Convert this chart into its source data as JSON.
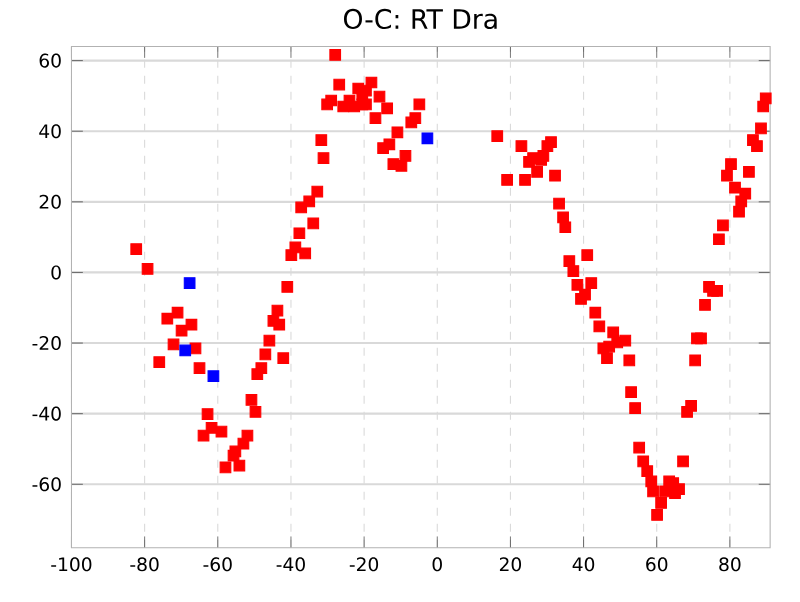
{
  "chart_data": {
    "type": "scatter",
    "title": "O-C: RT Dra",
    "xlim": [
      -100,
      91
    ],
    "ylim": [
      -78,
      64
    ],
    "xticks": [
      -100,
      -80,
      -60,
      -40,
      -20,
      0,
      20,
      40,
      60,
      80
    ],
    "yticks": [
      -60,
      -40,
      -20,
      0,
      20,
      40,
      60
    ],
    "grid": true,
    "marker": "square",
    "series": [
      {
        "color": "#ff0000",
        "x": [
          -82.3,
          -79.2,
          -41,
          -39.9,
          -38.8,
          -36.1,
          -37.7,
          -33.9,
          -37.2,
          -35,
          -32.8,
          -31.1,
          -31.7,
          -27.9,
          -26.8,
          -30.1,
          -29,
          -25.7,
          -24,
          -22.7,
          -21.6,
          -20.5,
          -19.5,
          -18,
          -20.5,
          -19.5,
          -15.8,
          -16.9,
          -13.7,
          -10.9,
          -13.1,
          -14.8,
          -12,
          -9.8,
          -8.7,
          -7.1,
          -6,
          -4.9,
          -43.7,
          -44.8,
          -43.2,
          -45.9,
          -47,
          -42.1,
          -48.1,
          -49.2,
          -50.8,
          -49.7,
          -51.9,
          -53,
          -55.2,
          -55.7,
          -54.1,
          -57.9,
          -59,
          -61.7,
          -63.9,
          -62.8,
          -65,
          -76,
          -72.1,
          -66.1,
          -69.9,
          -67.2,
          -73.8,
          -71,
          16.4,
          23,
          19.1,
          24,
          27.3,
          25.1,
          26.2,
          28.4,
          29,
          30.1,
          31.1,
          32.2,
          33.3,
          34.4,
          35,
          36.1,
          41,
          37.2,
          42.1,
          74.3,
          75.4,
          76.5,
          77,
          78.1,
          82.5,
          83.1,
          84.2,
          81.4,
          79.2,
          80.3,
          85.2,
          86.3,
          87.4,
          88.5,
          89.1,
          89.8,
          38.3,
          40.4,
          39.3,
          43.2,
          44.3,
          48.1,
          45.4,
          47,
          49.2,
          51.4,
          46.4,
          52.5,
          53,
          54.1,
          55.2,
          56.3,
          57.4,
          58.5,
          59,
          60.1,
          61.2,
          62.3,
          63.4,
          64.5,
          65,
          66.1,
          67.2,
          68.3,
          69.4,
          70.5,
          71,
          72.1,
          73.2
        ],
        "values": [
          6.6,
          1,
          -4.1,
          4.9,
          7.1,
          5.4,
          11.1,
          13.9,
          18.4,
          20.1,
          22.9,
          32.4,
          37.5,
          61.6,
          53.2,
          47.6,
          48.7,
          47,
          48.7,
          47,
          52.1,
          50.4,
          51.5,
          53.8,
          47.6,
          47.6,
          49.8,
          43.7,
          46.5,
          39.7,
          36.3,
          35.2,
          30.7,
          30.2,
          33,
          42.5,
          43.7,
          47.6,
          -10.8,
          -13.7,
          -14.8,
          -19.3,
          -23.2,
          -24.3,
          -27.1,
          -28.8,
          -36.1,
          -39.5,
          -46.2,
          -48.5,
          -50.7,
          -51.9,
          -54.7,
          -55.2,
          -45.1,
          -44,
          -46.2,
          -40.1,
          -27.1,
          -25.4,
          -20.4,
          -21.5,
          -16.5,
          -14.8,
          -13.1,
          -11.4,
          38.6,
          35.8,
          26.2,
          26.2,
          28.5,
          31.3,
          32.4,
          31.9,
          33,
          35.8,
          36.9,
          27.4,
          19.5,
          15.6,
          12.8,
          3.2,
          4.9,
          0.4,
          -3,
          -4.1,
          -5.2,
          -5.2,
          9.4,
          13.3,
          17.2,
          20.1,
          22.3,
          24,
          27.4,
          30.7,
          28.5,
          37.5,
          35.8,
          40.8,
          47,
          49.3,
          -3.5,
          -6.3,
          -7.5,
          -11.4,
          -15.3,
          -17,
          -21.5,
          -21,
          -19.8,
          -19.3,
          -24.3,
          -24.9,
          -33.9,
          -38.4,
          -49.6,
          -53.5,
          -56.3,
          -59.2,
          -62,
          -68.7,
          -65.3,
          -62,
          -59.2,
          -59.7,
          -62.5,
          -61.4,
          -53.5,
          -39.5,
          -37.8,
          -24.9,
          -18.7,
          -18.7,
          -9.2
        ]
      },
      {
        "color": "#0000ff",
        "x": [
          -67.7,
          -2.7,
          -61.2,
          -68.9
        ],
        "values": [
          -3,
          38,
          -29.4,
          -22.1
        ]
      }
    ]
  }
}
